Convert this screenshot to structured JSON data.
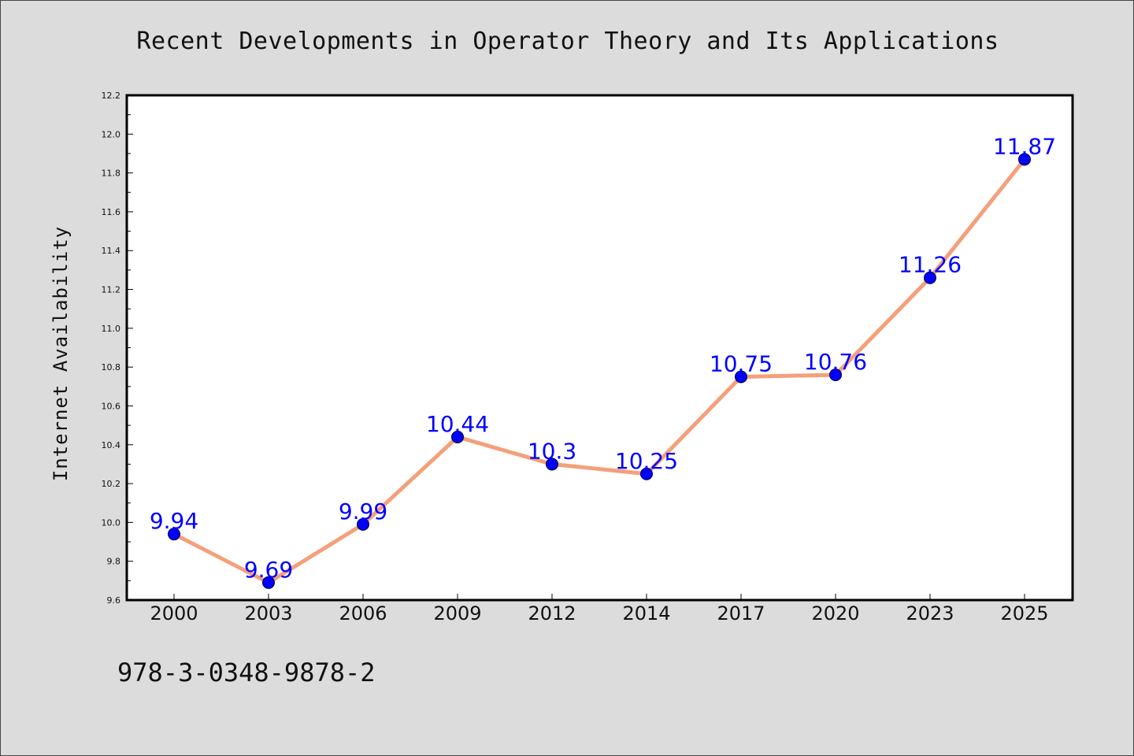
{
  "chart_data": {
    "type": "line",
    "title": "Recent Developments in Operator Theory and Its Applications",
    "xlabel": "",
    "ylabel": "Internet Availability",
    "categories": [
      "2000",
      "2003",
      "2006",
      "2009",
      "2012",
      "2014",
      "2017",
      "2020",
      "2023",
      "2025"
    ],
    "series": [
      {
        "values": [
          9.94,
          9.69,
          9.99,
          10.44,
          10.3,
          10.25,
          10.75,
          10.76,
          11.26,
          11.87
        ],
        "labels": [
          "9.94",
          "9.69",
          "9.99",
          "10.44",
          "10.3",
          "10.25",
          "10.75",
          "10.76",
          "11.26",
          "11.87"
        ],
        "line_color": "#f4a07a",
        "marker_color": "#0000ff",
        "label_color": "#0000ff"
      }
    ],
    "ylim": [
      9.6,
      12.2
    ],
    "yticks": [
      "9.6",
      "9.8",
      "10.0",
      "10.2",
      "10.4",
      "10.6",
      "10.8",
      "11.0",
      "11.2",
      "11.4",
      "11.6",
      "11.8",
      "12.0",
      "12.2"
    ],
    "grid": false,
    "legend": "none"
  },
  "footer": {
    "code": "978-3-0348-9878-2"
  },
  "colors": {
    "background": "#dcdcdc",
    "plot_background": "#ffffff"
  }
}
